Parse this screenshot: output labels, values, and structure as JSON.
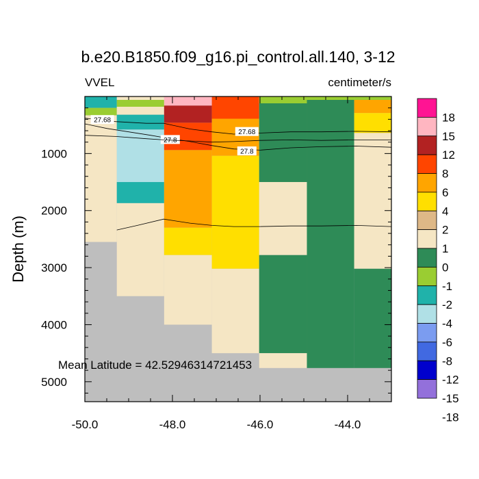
{
  "chart_data": {
    "type": "heatmap",
    "title": "b.e20.B1850.f09_g16.pi_control.all.140, 3-12",
    "variable_label": "VVEL",
    "units_label": "centimeter/s",
    "ylabel": "Depth (m)",
    "xlabel": "",
    "xlim": [
      -50.0,
      -43.0
    ],
    "ylim": [
      5350,
      0
    ],
    "x_ticks": [
      -50.0,
      -48.0,
      -46.0,
      -44.0
    ],
    "x_tick_labels": [
      "-50.0",
      "-48.0",
      "-46.0",
      "-44.0"
    ],
    "y_ticks": [
      1000,
      2000,
      3000,
      4000,
      5000
    ],
    "y_tick_labels": [
      "1000",
      "2000",
      "3000",
      "4000",
      "5000"
    ],
    "annotation": "Mean Latitude = 42.52946314721453",
    "grid": false,
    "colorbar": {
      "labels": [
        "18",
        "15",
        "12",
        "8",
        "6",
        "4",
        "2",
        "1",
        "0",
        "-1",
        "-2",
        "-4",
        "-6",
        "-8",
        "-12",
        "-15",
        "-18"
      ],
      "colors": [
        "#ff1493",
        "#ffb6c1",
        "#b22222",
        "#ff4500",
        "#ffa500",
        "#ffdf00",
        "#deb887",
        "#f5e6c4",
        "#2e8b57",
        "#9acd32",
        "#20b2aa",
        "#b0e0e6",
        "#7b9cf0",
        "#4169e1",
        "#0000cd",
        "#9370db"
      ]
    },
    "land_color": "#bebebe",
    "column_edges": [
      -50.0,
      -49.27,
      -48.19,
      -47.1,
      -46.02,
      -44.93,
      -43.85,
      -43.0
    ],
    "cells": [
      {
        "x": [
          -50.0,
          -49.27
        ],
        "y": [
          0,
          200
        ],
        "value": -4
      },
      {
        "x": [
          -50.0,
          -49.27
        ],
        "y": [
          200,
          330
        ],
        "value": -2
      },
      {
        "x": [
          -50.0,
          -49.27
        ],
        "y": [
          330,
          2550
        ],
        "value": 0
      },
      {
        "x": [
          -49.27,
          -48.19
        ],
        "y": [
          0,
          60
        ],
        "value": 0
      },
      {
        "x": [
          -49.27,
          -48.19
        ],
        "y": [
          60,
          180
        ],
        "value": -1.5
      },
      {
        "x": [
          -49.27,
          -48.19
        ],
        "y": [
          180,
          320
        ],
        "value": 0
      },
      {
        "x": [
          -49.27,
          -48.19
        ],
        "y": [
          320,
          580
        ],
        "value": -4
      },
      {
        "x": [
          -49.27,
          -48.19
        ],
        "y": [
          580,
          1500
        ],
        "value": -6
      },
      {
        "x": [
          -49.27,
          -48.19
        ],
        "y": [
          1500,
          1870
        ],
        "value": -4
      },
      {
        "x": [
          -49.27,
          -48.19
        ],
        "y": [
          1870,
          3500
        ],
        "value": 0
      },
      {
        "x": [
          -48.19,
          -47.1
        ],
        "y": [
          0,
          160
        ],
        "value": 12
      },
      {
        "x": [
          -48.19,
          -47.1
        ],
        "y": [
          160,
          460
        ],
        "value": 8
      },
      {
        "x": [
          -48.19,
          -47.1
        ],
        "y": [
          460,
          940
        ],
        "value": 6
      },
      {
        "x": [
          -48.19,
          -47.1
        ],
        "y": [
          940,
          2300
        ],
        "value": 4
      },
      {
        "x": [
          -48.19,
          -47.1
        ],
        "y": [
          2300,
          2780
        ],
        "value": 2
      },
      {
        "x": [
          -48.19,
          -47.1
        ],
        "y": [
          2780,
          4000
        ],
        "value": 0
      },
      {
        "x": [
          -47.1,
          -46.02
        ],
        "y": [
          0,
          390
        ],
        "value": 6
      },
      {
        "x": [
          -47.1,
          -46.02
        ],
        "y": [
          390,
          1040
        ],
        "value": 4
      },
      {
        "x": [
          -47.1,
          -46.02
        ],
        "y": [
          1040,
          3020
        ],
        "value": 2
      },
      {
        "x": [
          -47.1,
          -46.02
        ],
        "y": [
          3020,
          4500
        ],
        "value": 0
      },
      {
        "x": [
          -46.02,
          -44.93
        ],
        "y": [
          0,
          120
        ],
        "value": -2
      },
      {
        "x": [
          -46.02,
          -44.93
        ],
        "y": [
          120,
          1500
        ],
        "value": -1
      },
      {
        "x": [
          -46.02,
          -44.93
        ],
        "y": [
          1500,
          2780
        ],
        "value": 0
      },
      {
        "x": [
          -46.02,
          -44.93
        ],
        "y": [
          2780,
          4500
        ],
        "value": -1
      },
      {
        "x": [
          -46.02,
          -44.93
        ],
        "y": [
          4500,
          4760
        ],
        "value": 0
      },
      {
        "x": [
          -44.93,
          -43.85
        ],
        "y": [
          0,
          60
        ],
        "value": -2
      },
      {
        "x": [
          -44.93,
          -43.85
        ],
        "y": [
          60,
          4760
        ],
        "value": -1
      },
      {
        "x": [
          -43.85,
          -43.0
        ],
        "y": [
          0,
          60
        ],
        "value": -2
      },
      {
        "x": [
          -43.85,
          -43.0
        ],
        "y": [
          60,
          290
        ],
        "value": 4
      },
      {
        "x": [
          -43.85,
          -43.0
        ],
        "y": [
          290,
          640
        ],
        "value": 2
      },
      {
        "x": [
          -43.85,
          -43.0
        ],
        "y": [
          640,
          3020
        ],
        "value": 0
      },
      {
        "x": [
          -43.85,
          -43.0
        ],
        "y": [
          3020,
          4760
        ],
        "value": -1
      }
    ],
    "contours": [
      {
        "label": "27.68",
        "points": [
          [
            -50.0,
            380
          ],
          [
            -49.3,
            440
          ],
          [
            -48.6,
            470
          ],
          [
            -48.2,
            470
          ],
          [
            -47.6,
            570
          ],
          [
            -47.1,
            620
          ],
          [
            -46.6,
            660
          ],
          [
            -46.0,
            640
          ],
          [
            -45.3,
            620
          ],
          [
            -44.6,
            620
          ],
          [
            -43.8,
            610
          ],
          [
            -43.0,
            620
          ]
        ],
        "label_positions": [
          [
            -49.6,
            410
          ],
          [
            -46.3,
            620
          ]
        ]
      },
      {
        "label": "27.8",
        "points": [
          [
            -50.0,
            480
          ],
          [
            -49.5,
            560
          ],
          [
            -49.0,
            620
          ],
          [
            -48.5,
            680
          ],
          [
            -48.2,
            720
          ],
          [
            -47.6,
            790
          ],
          [
            -47.1,
            860
          ],
          [
            -46.6,
            920
          ],
          [
            -46.0,
            940
          ],
          [
            -45.3,
            900
          ],
          [
            -44.6,
            880
          ],
          [
            -43.8,
            870
          ],
          [
            -43.0,
            890
          ]
        ],
        "label_positions": [
          [
            -48.05,
            760
          ],
          [
            -46.3,
            960
          ]
        ]
      },
      {
        "label": "",
        "points": [
          [
            -50.0,
            680
          ],
          [
            -49.3,
            700
          ],
          [
            -48.6,
            740
          ],
          [
            -48.2,
            760
          ],
          [
            -47.6,
            780
          ],
          [
            -47.1,
            800
          ],
          [
            -46.6,
            790
          ],
          [
            -46.0,
            770
          ],
          [
            -45.3,
            760
          ],
          [
            -44.6,
            770
          ],
          [
            -43.8,
            760
          ],
          [
            -43.0,
            760
          ]
        ],
        "label_positions": []
      },
      {
        "label": "",
        "points": [
          [
            -49.27,
            2340
          ],
          [
            -48.8,
            2260
          ],
          [
            -48.2,
            2150
          ],
          [
            -47.6,
            2220
          ],
          [
            -47.1,
            2260
          ],
          [
            -46.6,
            2280
          ],
          [
            -46.0,
            2280
          ],
          [
            -45.3,
            2270
          ],
          [
            -44.6,
            2270
          ],
          [
            -43.8,
            2260
          ],
          [
            -43.0,
            2280
          ]
        ],
        "label_positions": []
      }
    ]
  }
}
